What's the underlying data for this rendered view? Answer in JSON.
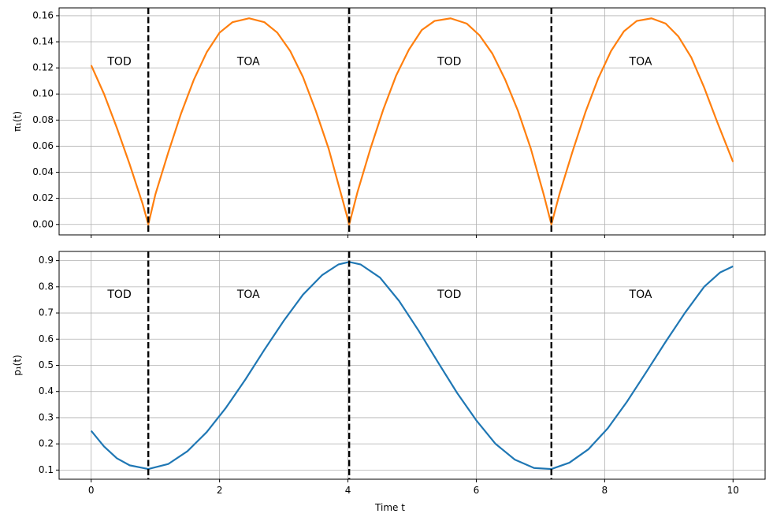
{
  "chart_data": [
    {
      "type": "line",
      "xlabel": "",
      "ylabel": "π₁(t)",
      "xlim": [
        -0.5,
        10.5
      ],
      "ylim": [
        -0.008,
        0.166
      ],
      "xticks": [
        0,
        2,
        4,
        6,
        8,
        10
      ],
      "xtick_labels": [
        "0",
        "2",
        "4",
        "6",
        "8",
        "10"
      ],
      "show_xtick_labels": false,
      "yticks": [
        0.0,
        0.02,
        0.04,
        0.06,
        0.08,
        0.1,
        0.12,
        0.14,
        0.16
      ],
      "ytick_labels": [
        "0.00",
        "0.02",
        "0.04",
        "0.06",
        "0.08",
        "0.10",
        "0.12",
        "0.14",
        "0.16"
      ],
      "grid": true,
      "color": "#ff7f0e",
      "vlines": [
        0.89,
        4.02,
        7.17
      ],
      "annotations": [
        {
          "text": "TOD",
          "x": 0.44,
          "y": 0.1245
        },
        {
          "text": "TOA",
          "x": 2.45,
          "y": 0.1245
        },
        {
          "text": "TOD",
          "x": 5.58,
          "y": 0.1245
        },
        {
          "text": "TOA",
          "x": 8.56,
          "y": 0.1245
        }
      ],
      "x": [
        0.0,
        0.2,
        0.4,
        0.6,
        0.8,
        0.89,
        1.0,
        1.2,
        1.4,
        1.6,
        1.8,
        2.0,
        2.2,
        2.46,
        2.7,
        2.9,
        3.1,
        3.3,
        3.5,
        3.7,
        3.9,
        4.02,
        4.15,
        4.35,
        4.55,
        4.75,
        4.95,
        5.15,
        5.35,
        5.6,
        5.85,
        6.05,
        6.25,
        6.45,
        6.65,
        6.85,
        7.05,
        7.17,
        7.3,
        7.5,
        7.7,
        7.9,
        8.1,
        8.3,
        8.5,
        8.73,
        8.95,
        9.15,
        9.35,
        9.55,
        9.75,
        10.0
      ],
      "y": [
        0.122,
        0.1,
        0.074,
        0.046,
        0.016,
        0.0,
        0.023,
        0.055,
        0.085,
        0.111,
        0.132,
        0.147,
        0.155,
        0.158,
        0.155,
        0.147,
        0.133,
        0.113,
        0.087,
        0.058,
        0.022,
        0.0,
        0.025,
        0.058,
        0.088,
        0.114,
        0.134,
        0.149,
        0.156,
        0.158,
        0.154,
        0.145,
        0.131,
        0.111,
        0.087,
        0.058,
        0.023,
        0.0,
        0.024,
        0.056,
        0.086,
        0.112,
        0.133,
        0.148,
        0.156,
        0.158,
        0.154,
        0.144,
        0.128,
        0.105,
        0.079,
        0.048
      ]
    },
    {
      "type": "line",
      "xlabel": "Time t",
      "ylabel": "p₁(t)",
      "xlim": [
        -0.5,
        10.5
      ],
      "ylim": [
        0.065,
        0.935
      ],
      "xticks": [
        0,
        2,
        4,
        6,
        8,
        10
      ],
      "xtick_labels": [
        "0",
        "2",
        "4",
        "6",
        "8",
        "10"
      ],
      "show_xtick_labels": true,
      "yticks": [
        0.1,
        0.2,
        0.3,
        0.4,
        0.5,
        0.6,
        0.7,
        0.8,
        0.9
      ],
      "ytick_labels": [
        "0.1",
        "0.2",
        "0.3",
        "0.4",
        "0.5",
        "0.6",
        "0.7",
        "0.8",
        "0.9"
      ],
      "grid": true,
      "color": "#1f77b4",
      "vlines": [
        0.89,
        4.02,
        7.17
      ],
      "annotations": [
        {
          "text": "TOD",
          "x": 0.44,
          "y": 0.77
        },
        {
          "text": "TOA",
          "x": 2.45,
          "y": 0.77
        },
        {
          "text": "TOD",
          "x": 5.58,
          "y": 0.77
        },
        {
          "text": "TOA",
          "x": 8.56,
          "y": 0.77
        }
      ],
      "x": [
        0.0,
        0.2,
        0.4,
        0.6,
        0.89,
        1.2,
        1.5,
        1.8,
        2.1,
        2.4,
        2.7,
        3.0,
        3.3,
        3.6,
        3.85,
        4.02,
        4.2,
        4.5,
        4.8,
        5.1,
        5.4,
        5.7,
        6.0,
        6.3,
        6.6,
        6.9,
        7.17,
        7.45,
        7.75,
        8.05,
        8.35,
        8.65,
        8.95,
        9.25,
        9.55,
        9.8,
        10.0
      ],
      "y": [
        0.25,
        0.19,
        0.145,
        0.118,
        0.104,
        0.123,
        0.172,
        0.245,
        0.338,
        0.445,
        0.56,
        0.67,
        0.77,
        0.845,
        0.885,
        0.895,
        0.885,
        0.835,
        0.745,
        0.633,
        0.513,
        0.395,
        0.29,
        0.2,
        0.14,
        0.108,
        0.104,
        0.128,
        0.18,
        0.26,
        0.362,
        0.475,
        0.59,
        0.7,
        0.8,
        0.855,
        0.878
      ]
    }
  ]
}
